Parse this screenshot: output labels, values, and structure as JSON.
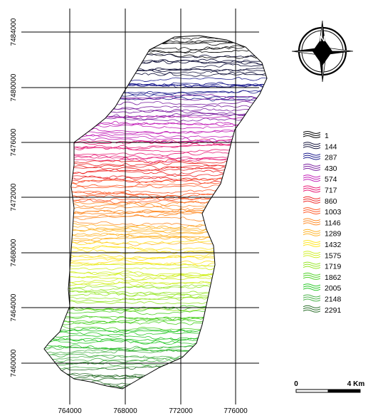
{
  "map": {
    "x_tick_labels": [
      "764000",
      "768000",
      "772000",
      "776000"
    ],
    "y_tick_labels": [
      "7484000",
      "7480000",
      "7476000",
      "7472000",
      "7468000",
      "7464000",
      "7460000"
    ]
  },
  "compass": {
    "north_label": "N",
    "icon": "north-arrow-compass-rose"
  },
  "legend": {
    "icon": "contour-swatch",
    "items": [
      {
        "label": "1",
        "color": "#0a0a0a"
      },
      {
        "label": "144",
        "color": "#14143c"
      },
      {
        "label": "287",
        "color": "#1a1a8c"
      },
      {
        "label": "430",
        "color": "#7a1fa0"
      },
      {
        "label": "574",
        "color": "#c21fb8"
      },
      {
        "label": "717",
        "color": "#e81f78"
      },
      {
        "label": "860",
        "color": "#ee2828"
      },
      {
        "label": "1003",
        "color": "#ff5a28"
      },
      {
        "label": "1146",
        "color": "#ff8c28"
      },
      {
        "label": "1289",
        "color": "#ffb428"
      },
      {
        "label": "1432",
        "color": "#ffe628"
      },
      {
        "label": "1575",
        "color": "#d2f028"
      },
      {
        "label": "1719",
        "color": "#96e628"
      },
      {
        "label": "1862",
        "color": "#50d228"
      },
      {
        "label": "2005",
        "color": "#28c828"
      },
      {
        "label": "2148",
        "color": "#50b450"
      },
      {
        "label": "2291",
        "color": "#2a6e2a"
      }
    ]
  },
  "scale_bar": {
    "start_label": "0",
    "end_label": "4 Km"
  }
}
